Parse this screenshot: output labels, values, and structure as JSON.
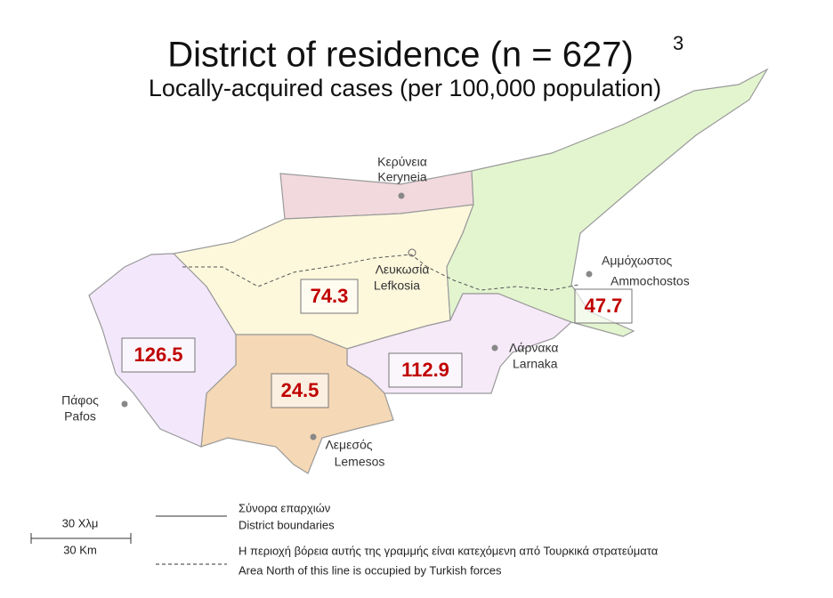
{
  "header": {
    "title": "District of residence (n = 627)",
    "superscript": "3",
    "subtitle": "Locally-acquired cases (per 100,000 population)"
  },
  "districts": [
    {
      "greek": "Κερύνεια",
      "latin": "Keryneia"
    },
    {
      "greek": "Λευκωσία",
      "latin": "Lefkosia",
      "value": "74.3"
    },
    {
      "greek": "Αμμόχωστος",
      "latin": "Ammochostos",
      "value": "47.7"
    },
    {
      "greek": "Λάρνακα",
      "latin": "Larnaka",
      "value": "112.9"
    },
    {
      "greek": "Λεμεσός",
      "latin": "Lemesos",
      "value": "24.5"
    },
    {
      "greek": "Πάφος",
      "latin": "Pafos",
      "value": "126.5"
    }
  ],
  "scale": {
    "greek": "30 Χλμ",
    "latin": "30 Km"
  },
  "legend": [
    {
      "greek": "Σύνορα επαρχιών",
      "latin": "District boundaries"
    },
    {
      "greek": "Η περιοχή βόρεια αυτής της γραμμής είναι κατεχόμενη από Τουρκικά στρατεύματα",
      "latin": "Area North of this line is occupied by Turkish forces"
    }
  ]
}
